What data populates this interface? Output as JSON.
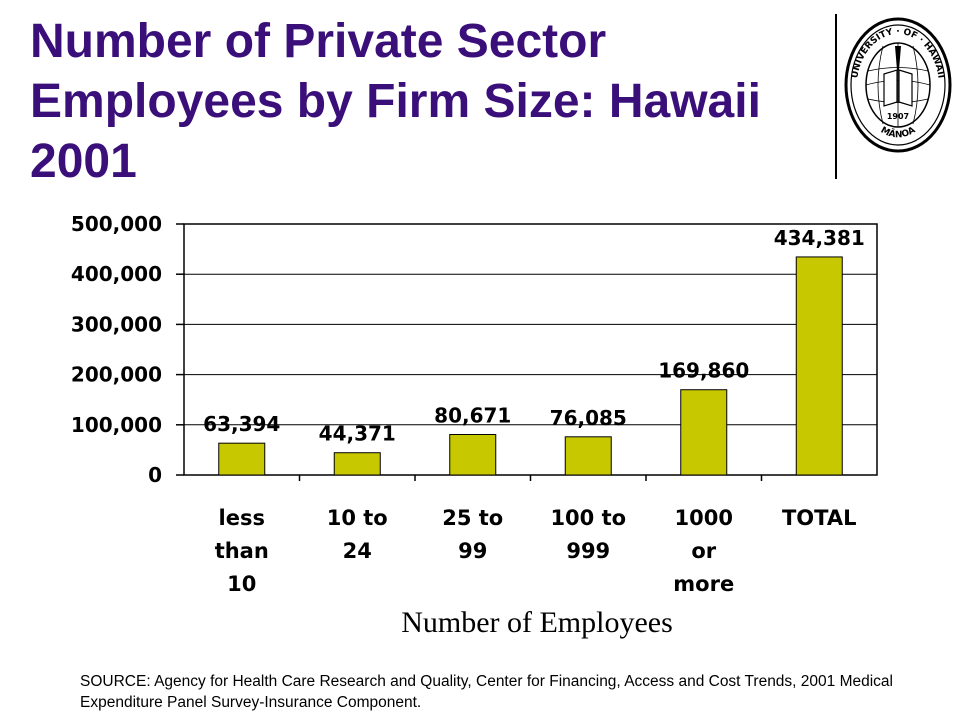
{
  "title": "Number of Private Sector Employees by Firm Size:  Hawaii 2001",
  "logo": {
    "icon": "university-of-hawaii-seal",
    "text_top": "UNIVERSITY · OF · HAWAII",
    "text_bottom": "MĀNOA",
    "year": "1907"
  },
  "chart_data": {
    "type": "bar",
    "categories": [
      [
        "less",
        "than",
        "10"
      ],
      [
        "10 to",
        "24"
      ],
      [
        "25 to",
        "99"
      ],
      [
        "100 to",
        "999"
      ],
      [
        "1000",
        "or",
        "more"
      ],
      [
        "TOTAL"
      ]
    ],
    "values": [
      63394,
      44371,
      80671,
      76085,
      169860,
      434381
    ],
    "data_labels": [
      "63,394",
      "44,371",
      "80,671",
      "76,085",
      "169,860",
      "434,381"
    ],
    "xlabel": "Number of Employees",
    "ylabel": "",
    "ylim": [
      0,
      500000
    ],
    "yticks": [
      0,
      100000,
      200000,
      300000,
      400000,
      500000
    ],
    "ytick_labels": [
      "0",
      "100,000",
      "200,000",
      "300,000",
      "400,000",
      "500,000"
    ],
    "grid": true,
    "bar_color": "#c8c800"
  },
  "source": "SOURCE: Agency for Health Care Research and Quality, Center for Financing, Access and Cost Trends, 2001 Medical Expenditure Panel Survey-Insurance Component."
}
